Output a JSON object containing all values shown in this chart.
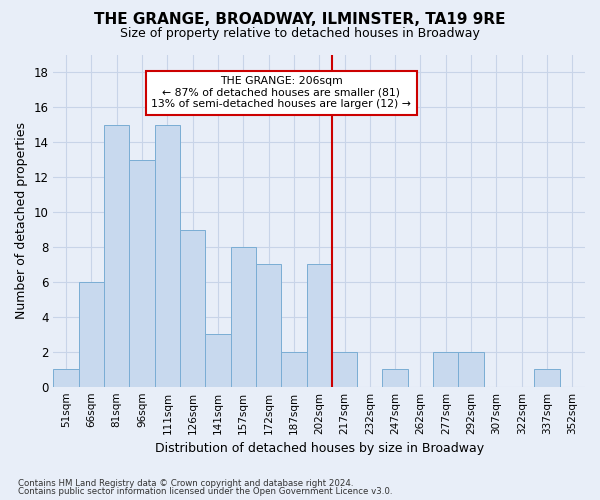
{
  "title": "THE GRANGE, BROADWAY, ILMINSTER, TA19 9RE",
  "subtitle": "Size of property relative to detached houses in Broadway",
  "xlabel": "Distribution of detached houses by size in Broadway",
  "ylabel": "Number of detached properties",
  "categories": [
    "51sqm",
    "66sqm",
    "81sqm",
    "96sqm",
    "111sqm",
    "126sqm",
    "141sqm",
    "157sqm",
    "172sqm",
    "187sqm",
    "202sqm",
    "217sqm",
    "232sqm",
    "247sqm",
    "262sqm",
    "277sqm",
    "292sqm",
    "307sqm",
    "322sqm",
    "337sqm",
    "352sqm"
  ],
  "values": [
    1,
    6,
    15,
    13,
    15,
    9,
    3,
    8,
    7,
    2,
    7,
    2,
    0,
    1,
    0,
    2,
    2,
    0,
    0,
    1,
    0
  ],
  "bar_color": "#c8d9ee",
  "bar_edge_color": "#7aadd4",
  "annotation_box_text": "THE GRANGE: 206sqm",
  "annotation_line1": "← 87% of detached houses are smaller (81)",
  "annotation_line2": "13% of semi-detached houses are larger (12) →",
  "annotation_box_color": "#ffffff",
  "annotation_box_edge_color": "#cc0000",
  "vline_color": "#cc0000",
  "vline_x_index": 10.5,
  "ylim": [
    0,
    19
  ],
  "yticks": [
    0,
    2,
    4,
    6,
    8,
    10,
    12,
    14,
    16,
    18
  ],
  "grid_color": "#c8d4e8",
  "bg_color": "#e8eef8",
  "title_fontsize": 11,
  "subtitle_fontsize": 9,
  "footnote1": "Contains HM Land Registry data © Crown copyright and database right 2024.",
  "footnote2": "Contains public sector information licensed under the Open Government Licence v3.0."
}
